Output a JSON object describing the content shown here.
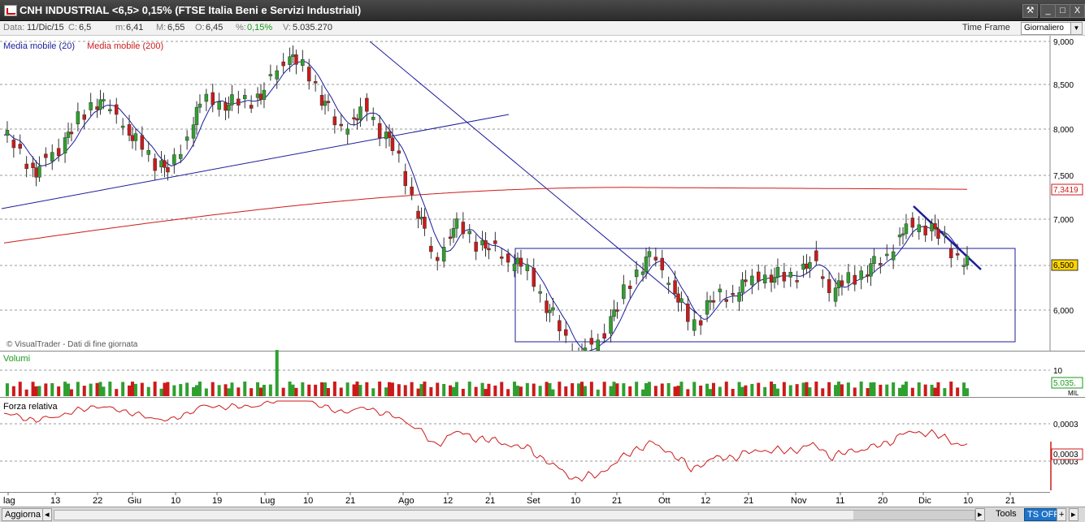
{
  "window": {
    "title": "CNH INDUSTRIAL <6,5> 0,15%  (FTSE Italia Beni e Servizi Industriali)",
    "buttons": [
      "⚒",
      "_",
      "□",
      "X"
    ]
  },
  "infobar": {
    "data_label": "Data:",
    "data_value": "11/Dic/15",
    "c_label": "C:",
    "c_value": "6,5",
    "m_label": "m:",
    "m_value": "6,41",
    "M_label": "M:",
    "M_value": "6,55",
    "o_label": "O:",
    "o_value": "6,45",
    "pct_label": "%:",
    "pct_value": "0,15%",
    "v_label": "V:",
    "v_value": "5.035.270",
    "time_frame_label": "Time Frame",
    "time_frame_value": "Giornaliero"
  },
  "price_panel": {
    "legend_ma20": "Media mobile (20)",
    "legend_ma200": "Media mobile (200)",
    "watermark": "© VisualTrader - Dati di fine giornata",
    "y_ticks": [
      "9,000",
      "8,500",
      "8,000",
      "7,500",
      "7,000",
      "6,500",
      "6,000"
    ],
    "ma200_badge": "7,3419",
    "price_badge": "6,500",
    "colors": {
      "up": "#2fa02f",
      "down": "#cc1a1a",
      "ma20": "#1c1c9c",
      "ma200": "#cc1a1a",
      "trend": "#1c1c9c"
    }
  },
  "volume_panel": {
    "label": "Volumi",
    "y_tick": "10",
    "badge": "5.035.",
    "unit": "MIL"
  },
  "rs_panel": {
    "label": "Forza relativa",
    "y_ticks": [
      "0,0003",
      "0,0003"
    ],
    "badge": "0,0003"
  },
  "x_axis": {
    "labels": [
      "lag",
      "13",
      "22",
      "Giu",
      "10",
      "19",
      "Lug",
      "10",
      "21",
      "Ago",
      "12",
      "21",
      "Set",
      "10",
      "21",
      "Ott",
      "12",
      "21",
      "Nov",
      "11",
      "20",
      "Dic",
      "10",
      "21"
    ]
  },
  "bottombar": {
    "refresh_label": "Aggiorna",
    "tools_label": "Tools",
    "ts_label": "TS OFF",
    "plus_label": "+",
    "arrow_label": "▸"
  }
}
